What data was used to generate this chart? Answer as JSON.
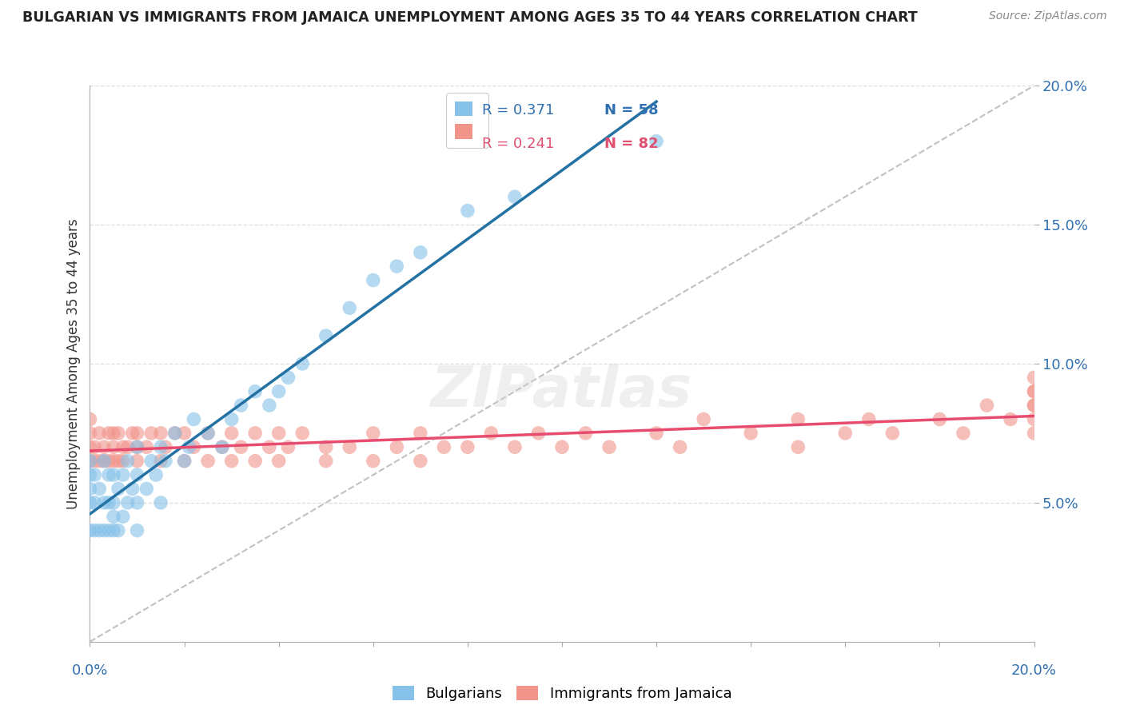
{
  "title": "BULGARIAN VS IMMIGRANTS FROM JAMAICA UNEMPLOYMENT AMONG AGES 35 TO 44 YEARS CORRELATION CHART",
  "source": "Source: ZipAtlas.com",
  "ylabel": "Unemployment Among Ages 35 to 44 years",
  "xlim": [
    0.0,
    0.2
  ],
  "ylim": [
    0.0,
    0.2
  ],
  "yticks": [
    0.05,
    0.1,
    0.15,
    0.2
  ],
  "ytick_labels": [
    "5.0%",
    "10.0%",
    "15.0%",
    "20.0%"
  ],
  "legend_R_bulgarian": "R = 0.371",
  "legend_N_bulgarian": "N = 58",
  "legend_R_jamaican": "R = 0.241",
  "legend_N_jamaican": "N = 82",
  "color_bulgarian": "#85C1E9",
  "color_jamaican": "#F1948A",
  "line_color_bulgarian": "#2471A3",
  "line_color_jamaican": "#E74C6F",
  "diagonal_color": "#BBBBBB",
  "bg_color": "#ffffff",
  "grid_color": "#DDDDDD",
  "bul_x": [
    0.0,
    0.0,
    0.0,
    0.0,
    0.0,
    0.001,
    0.001,
    0.001,
    0.002,
    0.002,
    0.003,
    0.003,
    0.003,
    0.004,
    0.004,
    0.004,
    0.005,
    0.005,
    0.005,
    0.005,
    0.006,
    0.006,
    0.007,
    0.007,
    0.008,
    0.008,
    0.009,
    0.01,
    0.01,
    0.01,
    0.01,
    0.012,
    0.013,
    0.014,
    0.015,
    0.015,
    0.016,
    0.018,
    0.02,
    0.021,
    0.022,
    0.025,
    0.028,
    0.03,
    0.032,
    0.035,
    0.038,
    0.04,
    0.042,
    0.045,
    0.05,
    0.055,
    0.06,
    0.065,
    0.07,
    0.08,
    0.09,
    0.12
  ],
  "bul_y": [
    0.04,
    0.05,
    0.055,
    0.06,
    0.065,
    0.04,
    0.05,
    0.06,
    0.04,
    0.055,
    0.04,
    0.05,
    0.065,
    0.04,
    0.05,
    0.06,
    0.04,
    0.045,
    0.05,
    0.06,
    0.04,
    0.055,
    0.045,
    0.06,
    0.05,
    0.065,
    0.055,
    0.04,
    0.05,
    0.06,
    0.07,
    0.055,
    0.065,
    0.06,
    0.05,
    0.07,
    0.065,
    0.075,
    0.065,
    0.07,
    0.08,
    0.075,
    0.07,
    0.08,
    0.085,
    0.09,
    0.085,
    0.09,
    0.095,
    0.1,
    0.11,
    0.12,
    0.13,
    0.135,
    0.14,
    0.155,
    0.16,
    0.18
  ],
  "jam_x": [
    0.0,
    0.0,
    0.0,
    0.0,
    0.001,
    0.001,
    0.002,
    0.002,
    0.003,
    0.003,
    0.004,
    0.004,
    0.005,
    0.005,
    0.005,
    0.006,
    0.006,
    0.007,
    0.007,
    0.008,
    0.009,
    0.01,
    0.01,
    0.01,
    0.012,
    0.013,
    0.015,
    0.015,
    0.016,
    0.018,
    0.02,
    0.02,
    0.022,
    0.025,
    0.025,
    0.028,
    0.03,
    0.03,
    0.032,
    0.035,
    0.035,
    0.038,
    0.04,
    0.04,
    0.042,
    0.045,
    0.05,
    0.05,
    0.055,
    0.06,
    0.06,
    0.065,
    0.07,
    0.07,
    0.075,
    0.08,
    0.085,
    0.09,
    0.095,
    0.1,
    0.105,
    0.11,
    0.12,
    0.125,
    0.13,
    0.14,
    0.15,
    0.15,
    0.16,
    0.165,
    0.17,
    0.18,
    0.185,
    0.19,
    0.195,
    0.2,
    0.2,
    0.2,
    0.2,
    0.2,
    0.2,
    0.2
  ],
  "jam_y": [
    0.065,
    0.07,
    0.075,
    0.08,
    0.065,
    0.07,
    0.065,
    0.075,
    0.065,
    0.07,
    0.065,
    0.075,
    0.065,
    0.07,
    0.075,
    0.065,
    0.075,
    0.065,
    0.07,
    0.07,
    0.075,
    0.065,
    0.07,
    0.075,
    0.07,
    0.075,
    0.065,
    0.075,
    0.07,
    0.075,
    0.065,
    0.075,
    0.07,
    0.065,
    0.075,
    0.07,
    0.065,
    0.075,
    0.07,
    0.065,
    0.075,
    0.07,
    0.065,
    0.075,
    0.07,
    0.075,
    0.07,
    0.065,
    0.07,
    0.065,
    0.075,
    0.07,
    0.065,
    0.075,
    0.07,
    0.07,
    0.075,
    0.07,
    0.075,
    0.07,
    0.075,
    0.07,
    0.075,
    0.07,
    0.08,
    0.075,
    0.07,
    0.08,
    0.075,
    0.08,
    0.075,
    0.08,
    0.075,
    0.085,
    0.08,
    0.075,
    0.08,
    0.085,
    0.09,
    0.085,
    0.095,
    0.09
  ]
}
